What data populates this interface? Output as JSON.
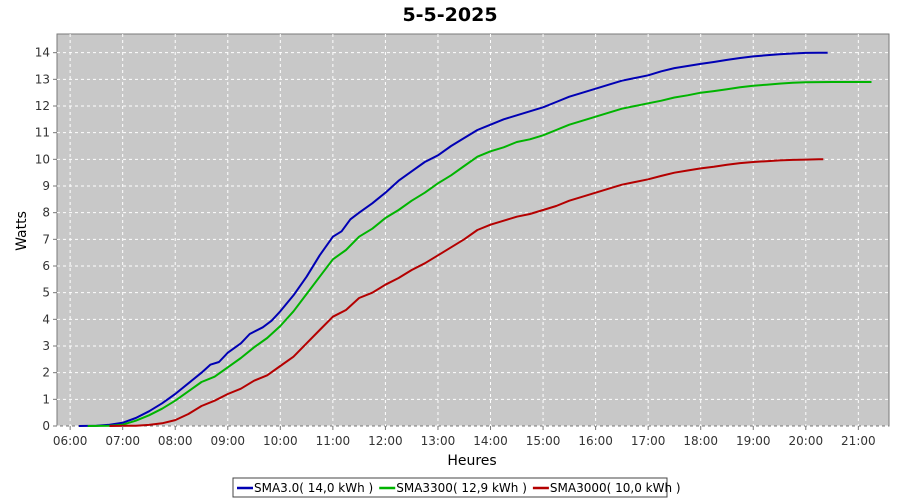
{
  "chart_data": {
    "type": "line",
    "title": "5-5-2025",
    "xlabel": "Heures",
    "ylabel": "Watts",
    "x_ticks": [
      "06:00",
      "07:00",
      "08:00",
      "09:00",
      "10:00",
      "11:00",
      "12:00",
      "13:00",
      "14:00",
      "15:00",
      "16:00",
      "17:00",
      "18:00",
      "19:00",
      "20:00",
      "21:00"
    ],
    "xlim": [
      "05:45",
      "21:35"
    ],
    "ylim": [
      0,
      14.7
    ],
    "y_ticks": [
      0,
      1,
      2,
      3,
      4,
      5,
      6,
      7,
      8,
      9,
      10,
      11,
      12,
      13,
      14
    ],
    "grid": true,
    "legend_position": "bottom",
    "plot_background": "#c8c8c8",
    "series": [
      {
        "name": "SMA3.0( 14,0 kWh )",
        "color": "#0000b4",
        "points": [
          [
            "06:10",
            0
          ],
          [
            "06:30",
            0.01
          ],
          [
            "06:45",
            0.05
          ],
          [
            "07:00",
            0.12
          ],
          [
            "07:15",
            0.3
          ],
          [
            "07:30",
            0.55
          ],
          [
            "07:45",
            0.85
          ],
          [
            "08:00",
            1.2
          ],
          [
            "08:15",
            1.6
          ],
          [
            "08:30",
            2.0
          ],
          [
            "08:40",
            2.3
          ],
          [
            "08:50",
            2.4
          ],
          [
            "09:00",
            2.75
          ],
          [
            "09:15",
            3.1
          ],
          [
            "09:25",
            3.45
          ],
          [
            "09:40",
            3.7
          ],
          [
            "09:50",
            3.95
          ],
          [
            "10:00",
            4.3
          ],
          [
            "10:15",
            4.9
          ],
          [
            "10:30",
            5.6
          ],
          [
            "10:45",
            6.4
          ],
          [
            "11:00",
            7.1
          ],
          [
            "11:10",
            7.3
          ],
          [
            "11:20",
            7.75
          ],
          [
            "11:30",
            8.0
          ],
          [
            "11:45",
            8.35
          ],
          [
            "12:00",
            8.75
          ],
          [
            "12:15",
            9.2
          ],
          [
            "12:30",
            9.55
          ],
          [
            "12:45",
            9.9
          ],
          [
            "13:00",
            10.15
          ],
          [
            "13:15",
            10.5
          ],
          [
            "13:30",
            10.8
          ],
          [
            "13:45",
            11.1
          ],
          [
            "14:00",
            11.3
          ],
          [
            "14:15",
            11.5
          ],
          [
            "14:30",
            11.65
          ],
          [
            "14:45",
            11.8
          ],
          [
            "15:00",
            11.95
          ],
          [
            "15:15",
            12.15
          ],
          [
            "15:30",
            12.35
          ],
          [
            "15:45",
            12.5
          ],
          [
            "16:00",
            12.65
          ],
          [
            "16:15",
            12.8
          ],
          [
            "16:30",
            12.95
          ],
          [
            "16:45",
            13.05
          ],
          [
            "17:00",
            13.15
          ],
          [
            "17:15",
            13.3
          ],
          [
            "17:30",
            13.42
          ],
          [
            "17:45",
            13.5
          ],
          [
            "18:00",
            13.58
          ],
          [
            "18:15",
            13.65
          ],
          [
            "18:30",
            13.73
          ],
          [
            "18:45",
            13.8
          ],
          [
            "19:00",
            13.86
          ],
          [
            "19:15",
            13.9
          ],
          [
            "19:30",
            13.94
          ],
          [
            "19:45",
            13.97
          ],
          [
            "20:00",
            13.99
          ],
          [
            "20:15",
            14.0
          ],
          [
            "20:25",
            14.0
          ]
        ]
      },
      {
        "name": "SMA3300( 12,9 kWh )",
        "color": "#00b400",
        "points": [
          [
            "06:20",
            0
          ],
          [
            "06:45",
            0.01
          ],
          [
            "07:00",
            0.05
          ],
          [
            "07:15",
            0.2
          ],
          [
            "07:30",
            0.4
          ],
          [
            "07:45",
            0.65
          ],
          [
            "08:00",
            0.95
          ],
          [
            "08:15",
            1.3
          ],
          [
            "08:30",
            1.65
          ],
          [
            "08:45",
            1.85
          ],
          [
            "09:00",
            2.2
          ],
          [
            "09:15",
            2.55
          ],
          [
            "09:30",
            2.95
          ],
          [
            "09:45",
            3.3
          ],
          [
            "10:00",
            3.75
          ],
          [
            "10:15",
            4.3
          ],
          [
            "10:30",
            4.95
          ],
          [
            "10:45",
            5.6
          ],
          [
            "11:00",
            6.25
          ],
          [
            "11:15",
            6.6
          ],
          [
            "11:30",
            7.1
          ],
          [
            "11:45",
            7.4
          ],
          [
            "12:00",
            7.8
          ],
          [
            "12:15",
            8.1
          ],
          [
            "12:30",
            8.45
          ],
          [
            "12:45",
            8.75
          ],
          [
            "13:00",
            9.1
          ],
          [
            "13:15",
            9.4
          ],
          [
            "13:30",
            9.75
          ],
          [
            "13:45",
            10.1
          ],
          [
            "14:00",
            10.3
          ],
          [
            "14:15",
            10.45
          ],
          [
            "14:30",
            10.65
          ],
          [
            "14:45",
            10.75
          ],
          [
            "15:00",
            10.9
          ],
          [
            "15:15",
            11.1
          ],
          [
            "15:30",
            11.3
          ],
          [
            "15:45",
            11.45
          ],
          [
            "16:00",
            11.6
          ],
          [
            "16:15",
            11.75
          ],
          [
            "16:30",
            11.9
          ],
          [
            "16:45",
            12.0
          ],
          [
            "17:00",
            12.1
          ],
          [
            "17:15",
            12.2
          ],
          [
            "17:30",
            12.32
          ],
          [
            "17:45",
            12.4
          ],
          [
            "18:00",
            12.5
          ],
          [
            "18:15",
            12.56
          ],
          [
            "18:30",
            12.63
          ],
          [
            "18:45",
            12.7
          ],
          [
            "19:00",
            12.76
          ],
          [
            "19:15",
            12.8
          ],
          [
            "19:30",
            12.84
          ],
          [
            "19:45",
            12.87
          ],
          [
            "20:00",
            12.89
          ],
          [
            "20:30",
            12.9
          ],
          [
            "21:00",
            12.9
          ],
          [
            "21:15",
            12.9
          ]
        ]
      },
      {
        "name": "SMA3000( 10,0 kWh )",
        "color": "#b40000",
        "points": [
          [
            "06:45",
            0
          ],
          [
            "07:15",
            0.01
          ],
          [
            "07:30",
            0.04
          ],
          [
            "07:45",
            0.1
          ],
          [
            "08:00",
            0.22
          ],
          [
            "08:15",
            0.45
          ],
          [
            "08:30",
            0.75
          ],
          [
            "08:45",
            0.95
          ],
          [
            "09:00",
            1.2
          ],
          [
            "09:15",
            1.4
          ],
          [
            "09:30",
            1.7
          ],
          [
            "09:45",
            1.9
          ],
          [
            "10:00",
            2.25
          ],
          [
            "10:15",
            2.6
          ],
          [
            "10:30",
            3.1
          ],
          [
            "10:45",
            3.6
          ],
          [
            "11:00",
            4.1
          ],
          [
            "11:15",
            4.35
          ],
          [
            "11:30",
            4.8
          ],
          [
            "11:45",
            5.0
          ],
          [
            "12:00",
            5.3
          ],
          [
            "12:15",
            5.55
          ],
          [
            "12:30",
            5.85
          ],
          [
            "12:45",
            6.1
          ],
          [
            "13:00",
            6.4
          ],
          [
            "13:15",
            6.7
          ],
          [
            "13:30",
            7.0
          ],
          [
            "13:45",
            7.35
          ],
          [
            "14:00",
            7.55
          ],
          [
            "14:15",
            7.7
          ],
          [
            "14:30",
            7.85
          ],
          [
            "14:45",
            7.95
          ],
          [
            "15:00",
            8.1
          ],
          [
            "15:15",
            8.25
          ],
          [
            "15:30",
            8.45
          ],
          [
            "15:45",
            8.6
          ],
          [
            "16:00",
            8.75
          ],
          [
            "16:15",
            8.9
          ],
          [
            "16:30",
            9.05
          ],
          [
            "16:45",
            9.15
          ],
          [
            "17:00",
            9.25
          ],
          [
            "17:15",
            9.38
          ],
          [
            "17:30",
            9.5
          ],
          [
            "17:45",
            9.58
          ],
          [
            "18:00",
            9.66
          ],
          [
            "18:15",
            9.72
          ],
          [
            "18:30",
            9.8
          ],
          [
            "18:45",
            9.86
          ],
          [
            "19:00",
            9.9
          ],
          [
            "19:15",
            9.93
          ],
          [
            "19:30",
            9.96
          ],
          [
            "19:45",
            9.98
          ],
          [
            "20:00",
            9.99
          ],
          [
            "20:15",
            10.0
          ],
          [
            "20:20",
            10.0
          ]
        ]
      }
    ]
  }
}
